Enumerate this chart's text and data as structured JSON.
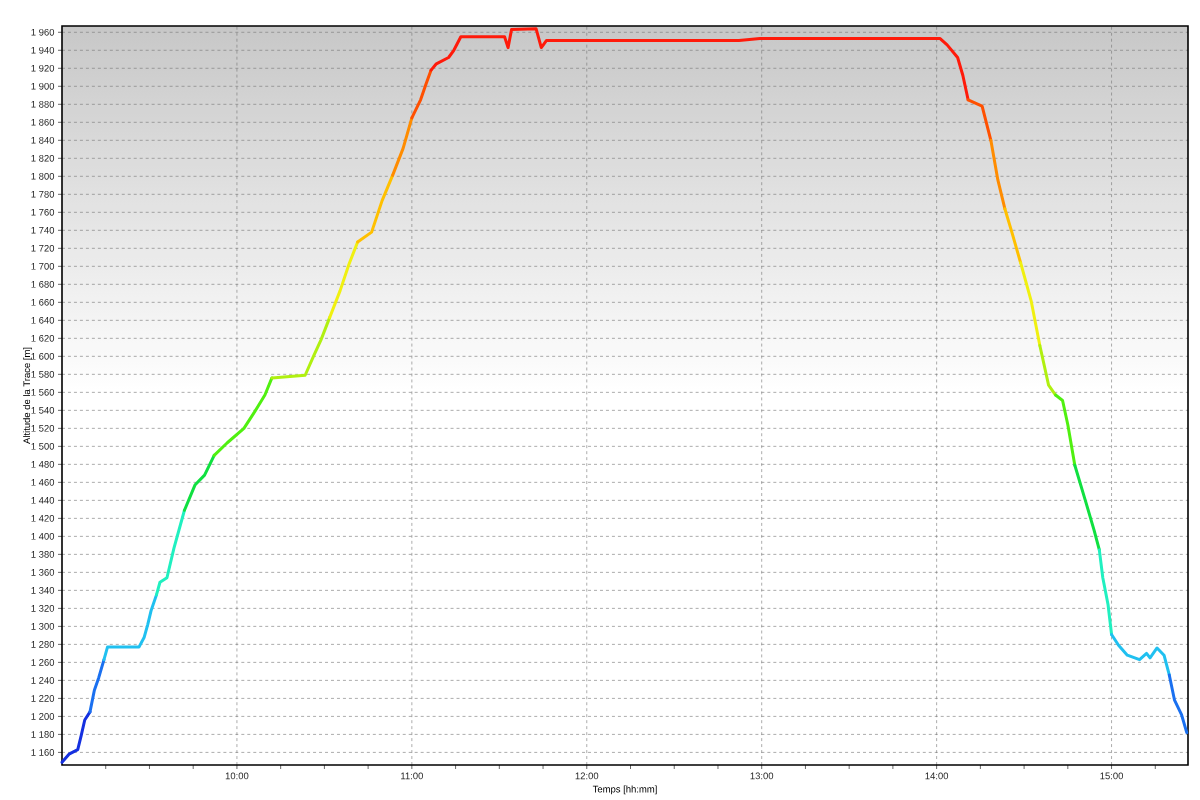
{
  "chart_data": {
    "type": "line",
    "xlabel": "Temps [hh:mm]",
    "ylabel": "Altitude de la Trace [m]",
    "xlim": [
      9.0,
      15.437
    ],
    "ylim": [
      1146,
      1967
    ],
    "grid": true,
    "marker": "none",
    "line_style": "solid",
    "xticks": [
      {
        "value": 9.25,
        "label": null
      },
      {
        "value": 9.5,
        "label": null
      },
      {
        "value": 9.75,
        "label": null
      },
      {
        "value": 10,
        "label": "10:00"
      },
      {
        "value": 10.25,
        "label": null
      },
      {
        "value": 10.5,
        "label": null
      },
      {
        "value": 10.75,
        "label": null
      },
      {
        "value": 11,
        "label": "11:00"
      },
      {
        "value": 11.25,
        "label": null
      },
      {
        "value": 11.5,
        "label": null
      },
      {
        "value": 11.75,
        "label": null
      },
      {
        "value": 12,
        "label": "12:00"
      },
      {
        "value": 12.25,
        "label": null
      },
      {
        "value": 12.5,
        "label": null
      },
      {
        "value": 12.75,
        "label": null
      },
      {
        "value": 13,
        "label": "13:00"
      },
      {
        "value": 13.25,
        "label": null
      },
      {
        "value": 13.5,
        "label": null
      },
      {
        "value": 13.75,
        "label": null
      },
      {
        "value": 14,
        "label": "14:00"
      },
      {
        "value": 14.25,
        "label": null
      },
      {
        "value": 14.5,
        "label": null
      },
      {
        "value": 14.75,
        "label": null
      },
      {
        "value": 15,
        "label": "15:00"
      },
      {
        "value": 15.25,
        "label": null
      }
    ],
    "yticks": [
      {
        "value": 1160,
        "label": "1 160"
      },
      {
        "value": 1180,
        "label": "1 180"
      },
      {
        "value": 1200,
        "label": "1 200"
      },
      {
        "value": 1220,
        "label": "1 220"
      },
      {
        "value": 1240,
        "label": "1 240"
      },
      {
        "value": 1260,
        "label": "1 260"
      },
      {
        "value": 1280,
        "label": "1 280"
      },
      {
        "value": 1300,
        "label": "1 300"
      },
      {
        "value": 1320,
        "label": "1 320"
      },
      {
        "value": 1340,
        "label": "1 340"
      },
      {
        "value": 1360,
        "label": "1 360"
      },
      {
        "value": 1380,
        "label": "1 380"
      },
      {
        "value": 1400,
        "label": "1 400"
      },
      {
        "value": 1420,
        "label": "1 420"
      },
      {
        "value": 1440,
        "label": "1 440"
      },
      {
        "value": 1460,
        "label": "1 460"
      },
      {
        "value": 1480,
        "label": "1 480"
      },
      {
        "value": 1500,
        "label": "1 500"
      },
      {
        "value": 1520,
        "label": "1 520"
      },
      {
        "value": 1540,
        "label": "1 540"
      },
      {
        "value": 1560,
        "label": "1 560"
      },
      {
        "value": 1580,
        "label": "1 580"
      },
      {
        "value": 1600,
        "label": "1 600"
      },
      {
        "value": 1620,
        "label": "1 620"
      },
      {
        "value": 1640,
        "label": "1 640"
      },
      {
        "value": 1660,
        "label": "1 660"
      },
      {
        "value": 1680,
        "label": "1 680"
      },
      {
        "value": 1700,
        "label": "1 700"
      },
      {
        "value": 1720,
        "label": "1 720"
      },
      {
        "value": 1740,
        "label": "1 740"
      },
      {
        "value": 1760,
        "label": "1 760"
      },
      {
        "value": 1780,
        "label": "1 780"
      },
      {
        "value": 1800,
        "label": "1 800"
      },
      {
        "value": 1820,
        "label": "1 820"
      },
      {
        "value": 1840,
        "label": "1 840"
      },
      {
        "value": 1860,
        "label": "1 860"
      },
      {
        "value": 1880,
        "label": "1 880"
      },
      {
        "value": 1900,
        "label": "1 900"
      },
      {
        "value": 1920,
        "label": "1 920"
      },
      {
        "value": 1940,
        "label": "1 940"
      },
      {
        "value": 1960,
        "label": "1 960"
      }
    ],
    "series": [
      {
        "color": "#1530e0",
        "x": [
          9.0,
          9.04,
          9.09,
          9.11,
          9.13,
          9.16
        ],
        "values": [
          1149,
          1158,
          1163,
          1179,
          1196,
          1205
        ]
      },
      {
        "color": "#1a70f0",
        "x": [
          9.16,
          9.185,
          9.21,
          9.24
        ],
        "values": [
          1205,
          1229,
          1243,
          1263
        ]
      },
      {
        "color": "#20c0f0",
        "x": [
          9.24,
          9.26,
          9.44,
          9.47,
          9.49,
          9.51,
          9.54
        ],
        "values": [
          1263,
          1277,
          1277,
          1288,
          1302,
          1318,
          1335
        ]
      },
      {
        "color": "#20f0c0",
        "x": [
          9.54,
          9.56,
          9.6,
          9.64,
          9.7
        ],
        "values": [
          1335,
          1349,
          1354,
          1387,
          1429
        ]
      },
      {
        "color": "#10e040",
        "x": [
          9.7,
          9.76,
          9.815,
          9.87
        ],
        "values": [
          1429,
          1457,
          1468,
          1490
        ]
      },
      {
        "color": "#50f010",
        "x": [
          9.87,
          9.945,
          10.04,
          10.1,
          10.16,
          10.2
        ],
        "values": [
          1490,
          1504,
          1520,
          1538,
          1557,
          1576
        ]
      },
      {
        "color": "#b0f010",
        "x": [
          10.2,
          10.39,
          10.44,
          10.48,
          10.53
        ],
        "values": [
          1576,
          1579,
          1601,
          1618,
          1643
        ]
      },
      {
        "color": "#f0f010",
        "x": [
          10.53,
          10.59,
          10.64,
          10.69
        ],
        "values": [
          1643,
          1673,
          1702,
          1727
        ]
      },
      {
        "color": "#ffc000",
        "x": [
          10.69,
          10.77,
          10.83,
          10.89
        ],
        "values": [
          1727,
          1738,
          1773,
          1801
        ]
      },
      {
        "color": "#ff8c00",
        "x": [
          10.89,
          10.95,
          11.0
        ],
        "values": [
          1801,
          1831,
          1865
        ]
      },
      {
        "color": "#ff5000",
        "x": [
          11.0,
          11.05,
          11.08,
          11.11
        ],
        "values": [
          1865,
          1885,
          1902,
          1918
        ]
      },
      {
        "color": "#ff1a0a",
        "x": [
          11.11,
          11.14,
          11.21,
          11.24,
          11.28,
          11.53,
          11.55,
          11.57,
          11.71,
          11.74,
          11.77,
          12.87,
          12.99,
          14.02,
          14.06,
          14.12,
          14.15,
          14.18
        ],
        "values": [
          1918,
          1925,
          1932,
          1940,
          1955,
          1955,
          1943,
          1963,
          1964,
          1943,
          1951,
          1951,
          1953,
          1953,
          1946,
          1932,
          1912,
          1885
        ]
      },
      {
        "color": "#ff5000",
        "x": [
          14.18,
          14.26,
          14.31
        ],
        "values": [
          1885,
          1878,
          1840
        ]
      },
      {
        "color": "#ff8c00",
        "x": [
          14.31,
          14.35,
          14.39
        ],
        "values": [
          1840,
          1796,
          1764
        ]
      },
      {
        "color": "#ffc000",
        "x": [
          14.39,
          14.43,
          14.48
        ],
        "values": [
          1764,
          1738,
          1704
        ]
      },
      {
        "color": "#f0f010",
        "x": [
          14.48,
          14.54,
          14.59
        ],
        "values": [
          1704,
          1662,
          1612
        ]
      },
      {
        "color": "#b0f010",
        "x": [
          14.59,
          14.64,
          14.68
        ],
        "values": [
          1612,
          1568,
          1557
        ]
      },
      {
        "color": "#50f010",
        "x": [
          14.68,
          14.72,
          14.75,
          14.79
        ],
        "values": [
          1557,
          1551,
          1524,
          1479
        ]
      },
      {
        "color": "#10e040",
        "x": [
          14.79,
          14.85,
          14.9,
          14.93
        ],
        "values": [
          1479,
          1440,
          1407,
          1385
        ]
      },
      {
        "color": "#20f0c0",
        "x": [
          14.93,
          14.95,
          14.98,
          15.0
        ],
        "values": [
          1385,
          1354,
          1324,
          1291
        ]
      },
      {
        "color": "#20c0f0",
        "x": [
          15.0,
          15.04,
          15.09,
          15.16,
          15.2,
          15.22,
          15.26,
          15.3,
          15.33
        ],
        "values": [
          1291,
          1279,
          1268,
          1263,
          1270,
          1265,
          1276,
          1268,
          1246
        ]
      },
      {
        "color": "#1a70f0",
        "x": [
          15.33,
          15.36,
          15.4,
          15.43
        ],
        "values": [
          1246,
          1218,
          1202,
          1182
        ]
      }
    ]
  }
}
